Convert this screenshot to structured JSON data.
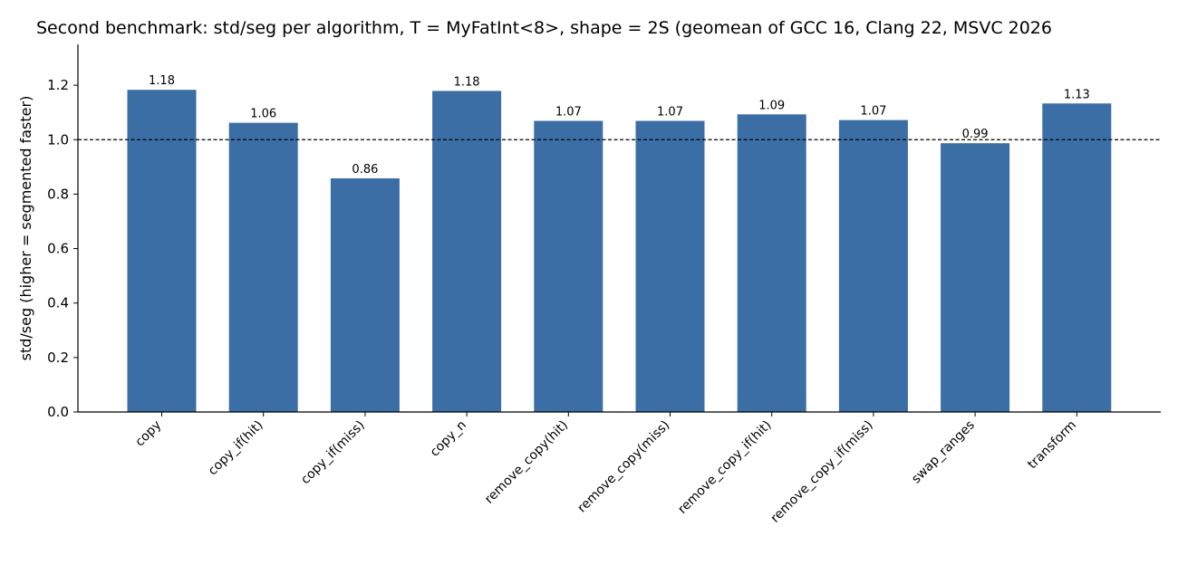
{
  "chart_data": {
    "type": "bar",
    "title": "Second benchmark: std/seg per algorithm, T = MyFatInt<8>, shape = 2S (geomean of GCC 16, Clang 22, MSVC 2026",
    "xlabel": "",
    "ylabel": "std/seg  (higher = segmented faster)",
    "categories": [
      "copy",
      "copy_if(hit)",
      "copy_if(miss)",
      "copy_n",
      "remove_copy(hit)",
      "remove_copy(miss)",
      "remove_copy_if(hit)",
      "remove_copy_if(miss)",
      "swap_ranges",
      "transform"
    ],
    "values": [
      1.183,
      1.062,
      0.858,
      1.179,
      1.069,
      1.069,
      1.093,
      1.072,
      0.987,
      1.133
    ],
    "data_labels": [
      "1.18",
      "1.06",
      "0.86",
      "1.18",
      "1.07",
      "1.07",
      "1.09",
      "1.07",
      "0.99",
      "1.13"
    ],
    "ylim": [
      0,
      1.35
    ],
    "yticks": [
      0.0,
      0.2,
      0.4,
      0.6,
      0.8,
      1.0,
      1.2
    ],
    "ytick_labels": [
      "0.0",
      "0.2",
      "0.4",
      "0.6",
      "0.8",
      "1.0",
      "1.2"
    ],
    "reference_line": 1.0,
    "bar_color": "#3b6ea5",
    "grid": false
  }
}
